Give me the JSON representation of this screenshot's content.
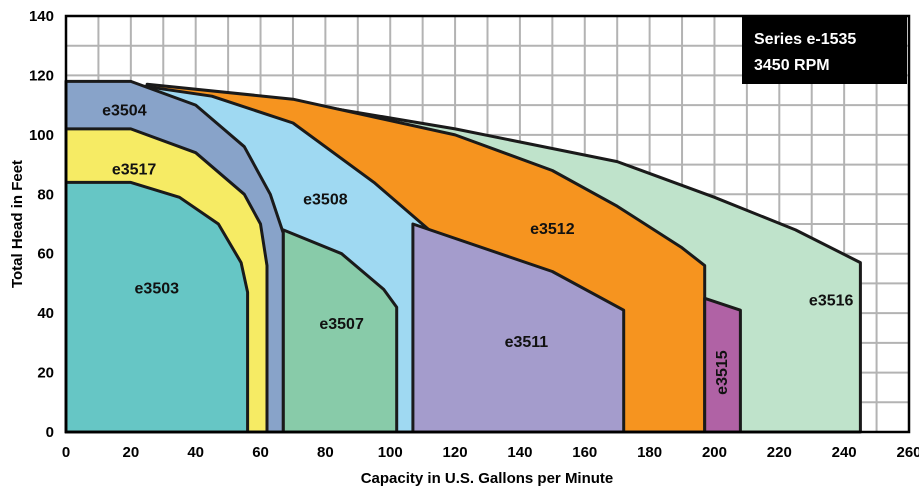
{
  "chart_data": {
    "type": "area",
    "title": "",
    "xlabel": "Capacity in U.S. Gallons per Minute",
    "ylabel": "Total Head in Feet",
    "xlim": [
      0,
      260
    ],
    "ylim": [
      0,
      140
    ],
    "x_ticks": [
      "0",
      "20",
      "40",
      "60",
      "80",
      "100",
      "120",
      "140",
      "160",
      "180",
      "200",
      "220",
      "240",
      "260"
    ],
    "y_ticks": [
      "0",
      "20",
      "40",
      "60",
      "80",
      "100",
      "120",
      "140"
    ],
    "grid": true,
    "legend_box": {
      "placement": "top-right",
      "lines": [
        "Series e-1535",
        "3450 RPM"
      ]
    },
    "series": [
      {
        "name": "e3516",
        "color": "#bfe3cb",
        "label_at": [
          236,
          44
        ],
        "points": [
          [
            0,
            118
          ],
          [
            60,
            113
          ],
          [
            120,
            102
          ],
          [
            170,
            91
          ],
          [
            200,
            79
          ],
          [
            225,
            68
          ],
          [
            245,
            57
          ],
          [
            245,
            0
          ],
          [
            0,
            0
          ]
        ]
      },
      {
        "name": "e3512",
        "color": "#f6941f",
        "label_at": [
          150,
          68
        ],
        "points": [
          [
            25,
            117
          ],
          [
            70,
            112
          ],
          [
            120,
            100
          ],
          [
            150,
            88
          ],
          [
            170,
            76
          ],
          [
            190,
            62
          ],
          [
            197,
            56
          ],
          [
            197,
            0
          ],
          [
            0,
            0
          ]
        ]
      },
      {
        "name": "e3508",
        "color": "#9fd9f2",
        "label_at": [
          80,
          78
        ],
        "points": [
          [
            20,
            117
          ],
          [
            45,
            113
          ],
          [
            70,
            104
          ],
          [
            95,
            84
          ],
          [
            112,
            68
          ],
          [
            118,
            57
          ],
          [
            118,
            0
          ],
          [
            0,
            0
          ]
        ]
      },
      {
        "name": "e3515",
        "color": "#b062a5",
        "label_at": [
          202.5,
          20
        ],
        "label_rotate": true,
        "points": [
          [
            197,
            45
          ],
          [
            208,
            41
          ],
          [
            208,
            0
          ],
          [
            197,
            0
          ]
        ]
      },
      {
        "name": "e3511",
        "color": "#a49ccc",
        "label_at": [
          142,
          30
        ],
        "points": [
          [
            107,
            70
          ],
          [
            150,
            54
          ],
          [
            172,
            41
          ],
          [
            172,
            0
          ],
          [
            107,
            0
          ]
        ]
      },
      {
        "name": "e3507",
        "color": "#88cba9",
        "label_at": [
          85,
          36
        ],
        "points": [
          [
            67,
            68
          ],
          [
            85,
            60
          ],
          [
            98,
            48
          ],
          [
            102,
            42
          ],
          [
            102,
            0
          ],
          [
            67,
            0
          ]
        ]
      },
      {
        "name": "e3504",
        "color": "#88a3c9",
        "label_at": [
          18,
          108
        ],
        "points": [
          [
            0,
            118
          ],
          [
            20,
            118
          ],
          [
            40,
            110
          ],
          [
            55,
            96
          ],
          [
            63,
            80
          ],
          [
            67,
            67
          ],
          [
            67,
            0
          ],
          [
            0,
            0
          ]
        ]
      },
      {
        "name": "e3517",
        "color": "#f6eb64",
        "label_at": [
          21,
          88
        ],
        "points": [
          [
            0,
            102
          ],
          [
            20,
            102
          ],
          [
            40,
            94
          ],
          [
            55,
            80
          ],
          [
            60,
            70
          ],
          [
            62,
            56
          ],
          [
            62,
            0
          ],
          [
            0,
            0
          ]
        ]
      },
      {
        "name": "e3503",
        "color": "#66c6c5",
        "label_at": [
          28,
          48
        ],
        "points": [
          [
            0,
            84
          ],
          [
            20,
            84
          ],
          [
            35,
            79
          ],
          [
            47,
            70
          ],
          [
            54,
            57
          ],
          [
            56,
            47
          ],
          [
            56,
            0
          ],
          [
            0,
            0
          ]
        ]
      }
    ]
  }
}
